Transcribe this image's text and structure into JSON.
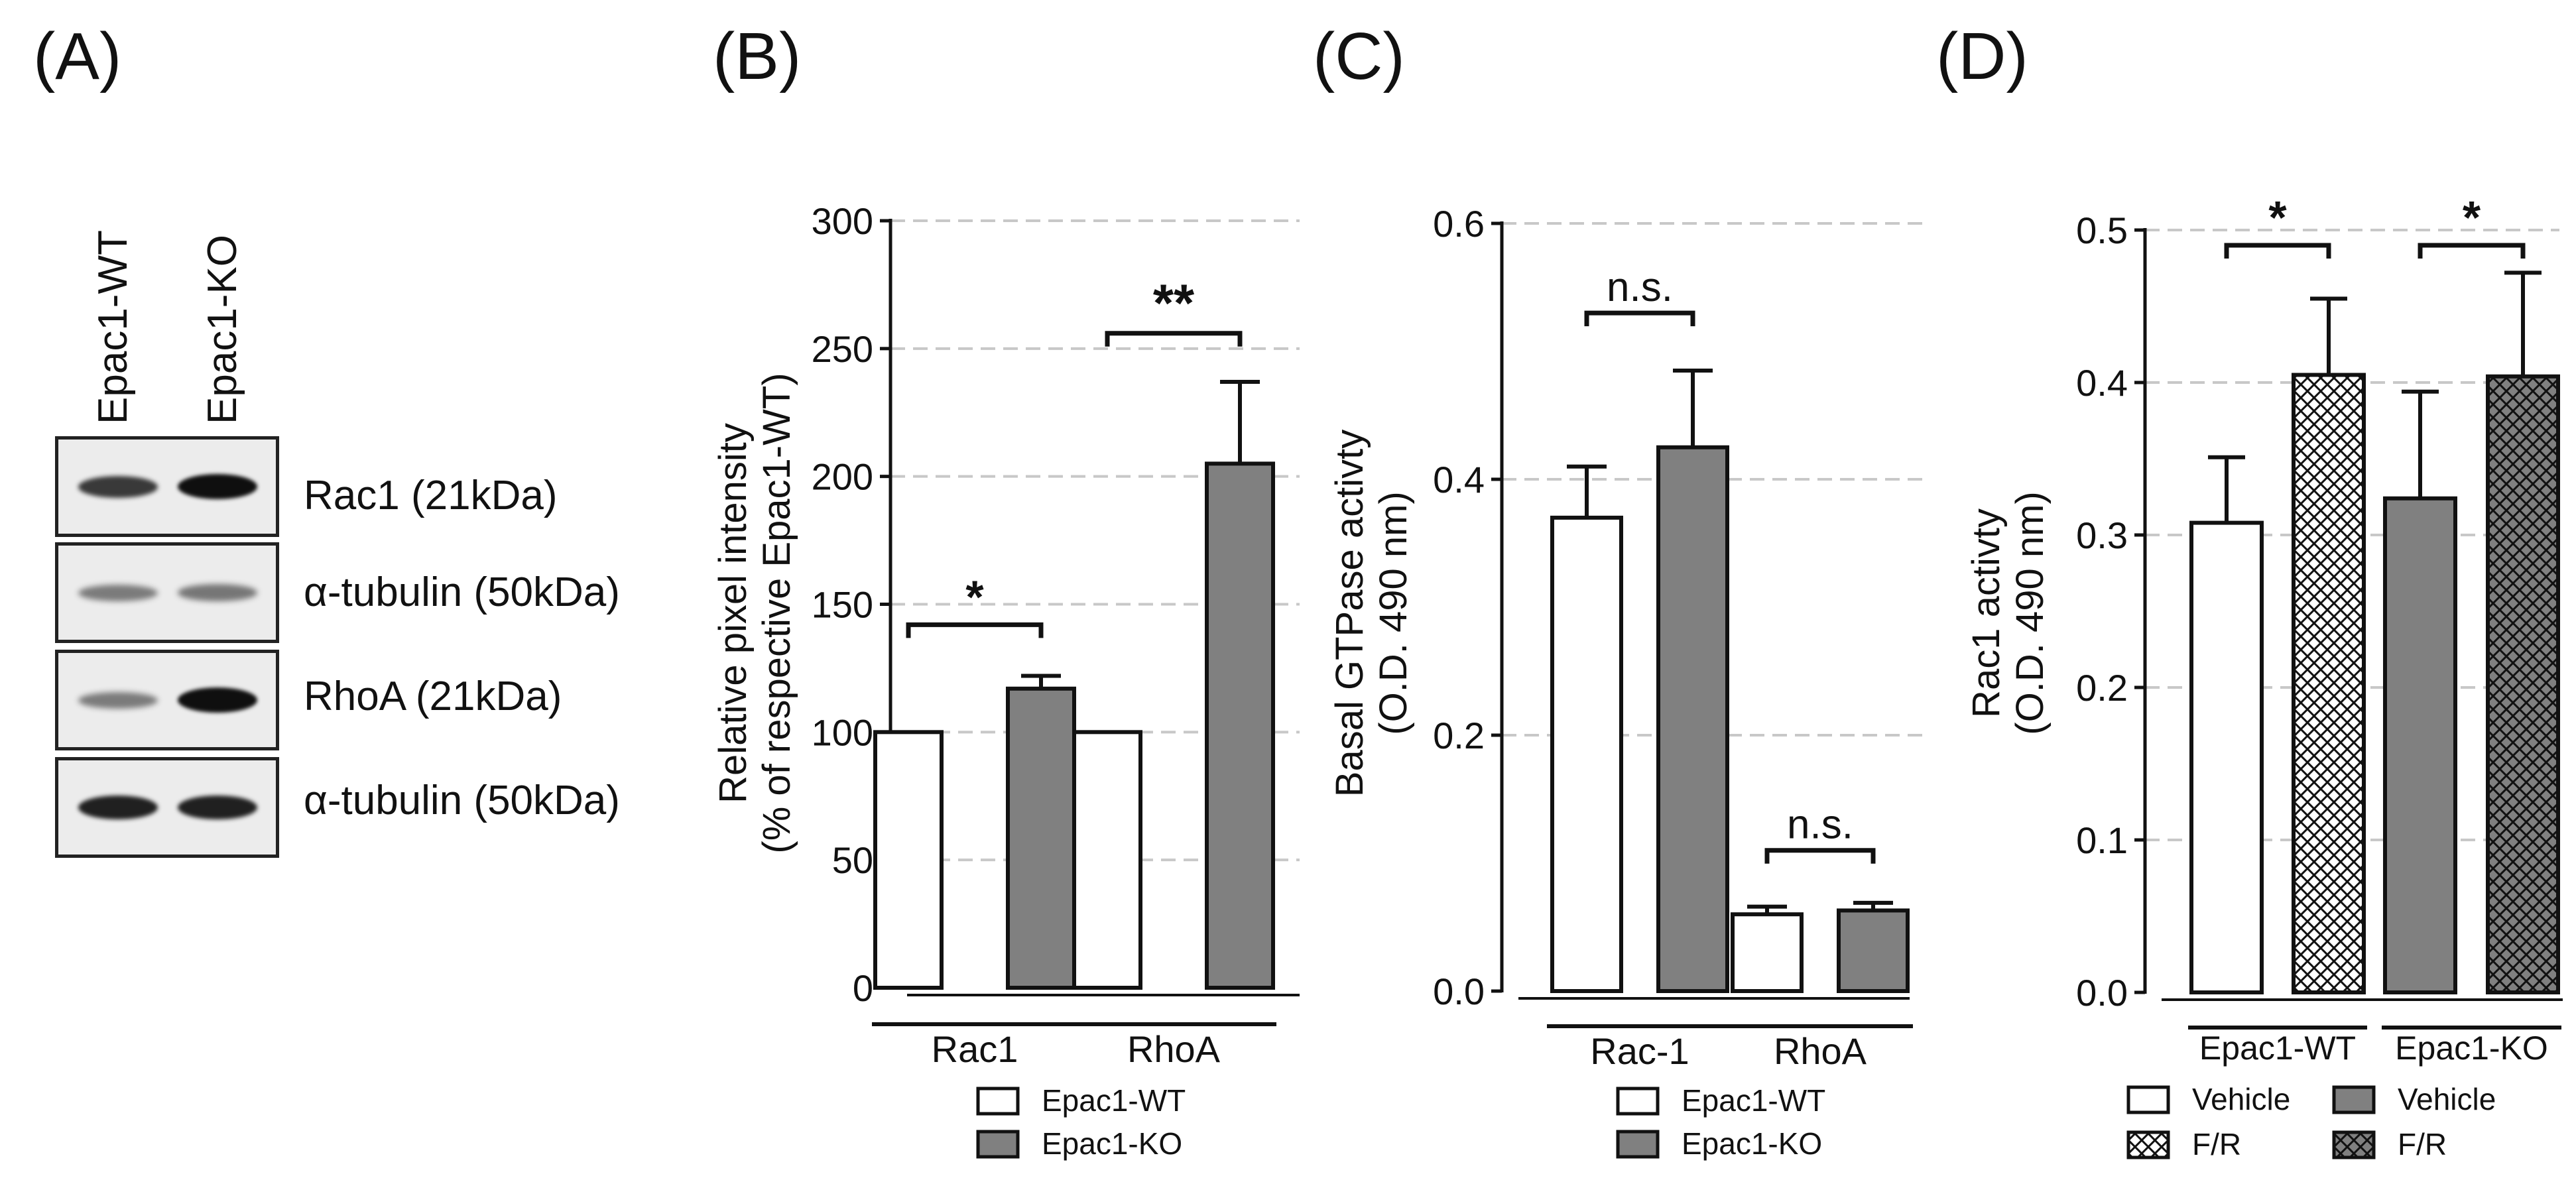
{
  "figure": {
    "panel_labels": [
      "(A)",
      "(B)",
      "(C)",
      "(D)"
    ]
  },
  "western_blot": {
    "lanes": [
      "Epac1-WT",
      "Epac1-KO"
    ],
    "rows": [
      {
        "label": "Rac1 (21kDa)",
        "band_intensity": [
          0.75,
          1.0
        ]
      },
      {
        "label": "α-tubulin (50kDa)",
        "band_intensity": [
          0.35,
          0.38
        ]
      },
      {
        "label": "RhoA (21kDa)",
        "band_intensity": [
          0.35,
          1.0
        ]
      },
      {
        "label": "α-tubulin (50kDa)",
        "band_intensity": [
          0.9,
          0.9
        ]
      }
    ]
  },
  "colors": {
    "wt": "#ffffff",
    "ko": "#808080",
    "axis": "#111111",
    "grid": "#c8c8c8"
  },
  "chart_data": [
    {
      "panel": "B",
      "type": "bar",
      "ylabel": [
        "Relative pixel intensity",
        "(% of respective Epac1-WT)"
      ],
      "ylim": [
        0,
        300
      ],
      "yticks": [
        0,
        50,
        100,
        150,
        200,
        250,
        300
      ],
      "ytick_labels": [
        "0",
        "50",
        "100",
        "150",
        "200",
        "250",
        "300"
      ],
      "grid": true,
      "groups": [
        "Rac1",
        "RhoA"
      ],
      "series": [
        {
          "name": "Epac1-WT",
          "fill": "white",
          "values": [
            100,
            100
          ],
          "errors": [
            0,
            0
          ]
        },
        {
          "name": "Epac1-KO",
          "fill": "gray",
          "values": [
            117,
            205
          ],
          "errors": [
            5,
            32
          ]
        }
      ],
      "significance": [
        {
          "group": 0,
          "label": "*",
          "y": 142
        },
        {
          "group": 1,
          "label": "**",
          "y": 256
        }
      ],
      "legend": [
        "Epac1-WT",
        "Epac1-KO"
      ]
    },
    {
      "panel": "C",
      "type": "bar",
      "ylabel": [
        "Basal GTPase activty",
        "(O.D. 490 nm)"
      ],
      "ylim": [
        0,
        0.6
      ],
      "yticks": [
        0,
        0.2,
        0.4,
        0.6
      ],
      "ytick_labels": [
        "0.0",
        "0.2",
        "0.4",
        "0.6"
      ],
      "grid": true,
      "groups": [
        "Rac-1",
        "RhoA"
      ],
      "series": [
        {
          "name": "Epac1-WT",
          "fill": "white",
          "values": [
            0.37,
            0.06
          ],
          "errors": [
            0.04,
            0.006
          ]
        },
        {
          "name": "Epac1-KO",
          "fill": "gray",
          "values": [
            0.425,
            0.063
          ],
          "errors": [
            0.06,
            0.006
          ]
        }
      ],
      "significance": [
        {
          "group": 0,
          "label": "n.s.",
          "y": 0.53
        },
        {
          "group": 1,
          "label": "n.s.",
          "y": 0.11
        }
      ],
      "legend": [
        "Epac1-WT",
        "Epac1-KO"
      ]
    },
    {
      "panel": "D",
      "type": "bar",
      "ylabel": [
        "Rac1 activty",
        "(O.D. 490 nm)"
      ],
      "ylim": [
        0,
        0.5
      ],
      "yticks": [
        0,
        0.1,
        0.2,
        0.3,
        0.4,
        0.5
      ],
      "ytick_labels": [
        "0.0",
        "0.1",
        "0.2",
        "0.3",
        "0.4",
        "0.5"
      ],
      "grid": true,
      "groups": [
        "Epac1-WT",
        "Epac1-KO"
      ],
      "bars": [
        {
          "group": 0,
          "condition": "Vehicle",
          "fill": "white",
          "value": 0.308,
          "error": 0.043
        },
        {
          "group": 0,
          "condition": "F/R",
          "fill": "white-hatch",
          "value": 0.405,
          "error": 0.05
        },
        {
          "group": 1,
          "condition": "Vehicle",
          "fill": "gray",
          "value": 0.324,
          "error": 0.07
        },
        {
          "group": 1,
          "condition": "F/R",
          "fill": "gray-hatch",
          "value": 0.404,
          "error": 0.068
        }
      ],
      "significance": [
        {
          "group": 0,
          "label": "*",
          "y": 0.49
        },
        {
          "group": 1,
          "label": "*",
          "y": 0.49
        }
      ],
      "legend": [
        {
          "label": "Vehicle",
          "fill": "white"
        },
        {
          "label": "Vehicle",
          "fill": "gray"
        },
        {
          "label": "F/R",
          "fill": "white-hatch"
        },
        {
          "label": "F/R",
          "fill": "gray-hatch"
        }
      ]
    }
  ]
}
